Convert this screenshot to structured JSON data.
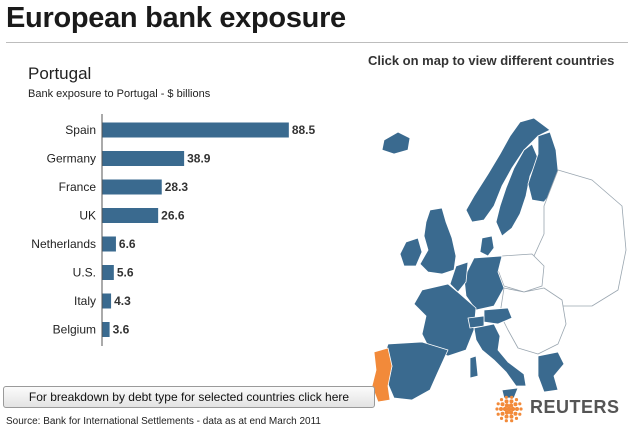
{
  "header": {
    "title": "European bank exposure"
  },
  "instructions": "Click on map to view different countries",
  "chart_data": {
    "type": "bar",
    "orientation": "horizontal",
    "title": "Portugal",
    "subtitle": "Bank exposure to Portugal - $ billions",
    "categories": [
      "Spain",
      "Germany",
      "France",
      "UK",
      "Netherlands",
      "U.S.",
      "Italy",
      "Belgium"
    ],
    "values": [
      88.5,
      38.9,
      28.3,
      26.6,
      6.6,
      5.6,
      4.3,
      3.6
    ],
    "bar_color": "#3a6a8f",
    "xlim": [
      0,
      90
    ]
  },
  "map": {
    "highlight_country": "Portugal",
    "highlight_color": "#f28a3a",
    "eu_color": "#3a6a8f",
    "other_color": "#ffffff"
  },
  "button": {
    "label": "For breakdown by debt type for selected countries click here"
  },
  "source": "Source: Bank for International Settlements - data as at end March 2011",
  "brand": {
    "name": "REUTERS",
    "color": "#f28a3a"
  }
}
